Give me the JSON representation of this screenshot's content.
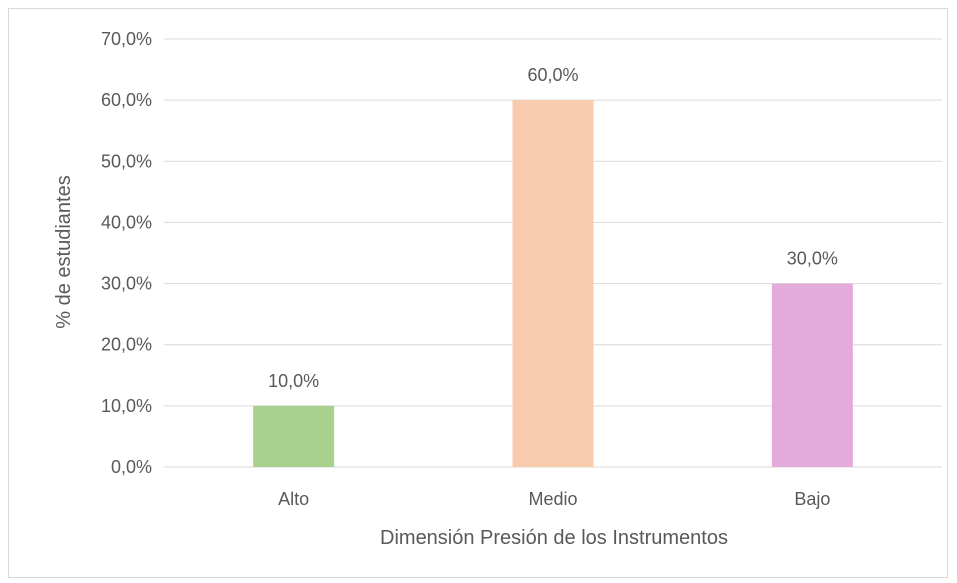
{
  "chart_data": {
    "type": "bar",
    "title": "",
    "xlabel": "Dimensión Presión de los Instrumentos",
    "ylabel": "% de estudiantes",
    "categories": [
      "Alto",
      "Medio",
      "Bajo"
    ],
    "values": [
      10.0,
      60.0,
      30.0
    ],
    "value_labels": [
      "10,0%",
      "60,0%",
      "30,0%"
    ],
    "colors": [
      "#a9d18e",
      "#f8cbad",
      "#e3aadc"
    ],
    "ylim": [
      0,
      70
    ],
    "yticks": [
      0,
      10,
      20,
      30,
      40,
      50,
      60,
      70
    ],
    "ytick_labels": [
      "0,0%",
      "10,0%",
      "20,0%",
      "30,0%",
      "40,0%",
      "50,0%",
      "60,0%",
      "70,0%"
    ],
    "grid": true,
    "legend": "none"
  }
}
